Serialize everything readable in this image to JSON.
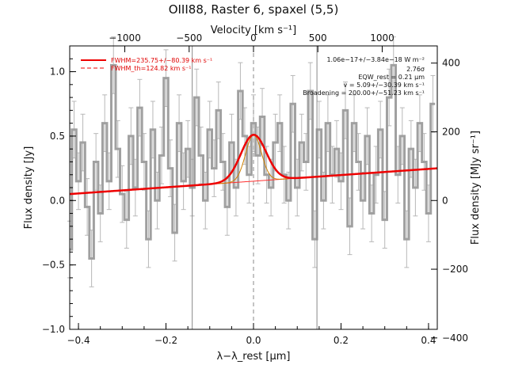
{
  "chart_data": {
    "type": "line",
    "title": "OIII88, Raster 6, spaxel (5,5)",
    "xlabel": "λ−λ_rest [μm]",
    "ylabel": "Flux density [Jy]",
    "top_xlabel": "Velocity [km s⁻¹]",
    "right_ylabel": "Flux density [MJy sr⁻¹]",
    "xlim": [
      -0.42,
      0.42
    ],
    "ylim": [
      -1.0,
      1.2
    ],
    "x_ticks": [
      -0.4,
      -0.2,
      0.0,
      0.2,
      0.4
    ],
    "x_tick_labels": [
      "−0.4",
      "−0.2",
      "0.0",
      "0.2",
      "0.4"
    ],
    "y_ticks": [
      -1.0,
      -0.5,
      0.0,
      0.5,
      1.0
    ],
    "y_tick_labels": [
      "−1.0",
      "−0.5",
      "0.0",
      "0.5",
      "1.0"
    ],
    "top_ticks": [
      -1000,
      -500,
      0,
      500,
      1000
    ],
    "top_tick_labels": [
      "−1000",
      "−500",
      "0",
      "500",
      "1000"
    ],
    "right_ticks": [
      -400,
      -200,
      0,
      200,
      400
    ],
    "right_tick_labels": [
      "−400",
      "−200",
      "0",
      "200",
      "400"
    ],
    "right_per_jy": 375,
    "km_s_per_um": 3400,
    "vertical_lines": [
      -0.14,
      0.145
    ],
    "center_line": 0.0,
    "colors": {
      "spectrum": "#a0a0a0",
      "errorbar": "#b8b8b8",
      "fit": "#ee0000",
      "component": "#d08000",
      "thin": "#ff3030"
    },
    "legend": [
      {
        "label": "FWHM=235.75+/−80.39 km s⁻¹",
        "style": "solid"
      },
      {
        "label": "FWHM_th=124.82 km s⁻¹",
        "style": "dashed"
      }
    ],
    "annotations": [
      "1.06e−17+/−3.84e−18 W m⁻²",
      "2.76σ",
      "EQW_rest = 0.21 μm",
      "v = 5.09+/−30.39 km s⁻¹",
      "Broadening = 200.00+/−51.23 km s⁻¹"
    ],
    "fit": {
      "continuum_start": 0.05,
      "continuum_end": 0.25,
      "center": 0.0,
      "amplitude": 0.36,
      "sigma_um": 0.029,
      "component_sigma_um": 0.018
    },
    "spectrum": {
      "x": [
        -0.42,
        -0.41,
        -0.4,
        -0.39,
        -0.38,
        -0.37,
        -0.36,
        -0.35,
        -0.34,
        -0.33,
        -0.32,
        -0.31,
        -0.3,
        -0.29,
        -0.28,
        -0.27,
        -0.26,
        -0.25,
        -0.24,
        -0.23,
        -0.22,
        -0.21,
        -0.2,
        -0.19,
        -0.18,
        -0.17,
        -0.16,
        -0.15,
        -0.14,
        -0.13,
        -0.12,
        -0.11,
        -0.1,
        -0.09,
        -0.08,
        -0.07,
        -0.06,
        -0.05,
        -0.04,
        -0.03,
        -0.02,
        -0.01,
        0.0,
        0.01,
        0.02,
        0.03,
        0.04,
        0.05,
        0.06,
        0.07,
        0.08,
        0.09,
        0.1,
        0.11,
        0.12,
        0.13,
        0.14,
        0.15,
        0.16,
        0.17,
        0.18,
        0.19,
        0.2,
        0.21,
        0.22,
        0.23,
        0.24,
        0.25,
        0.26,
        0.27,
        0.28,
        0.29,
        0.3,
        0.31,
        0.32,
        0.33,
        0.34,
        0.35,
        0.36,
        0.37,
        0.38,
        0.39,
        0.4,
        0.41
      ],
      "y": [
        -0.38,
        0.55,
        0.15,
        0.45,
        -0.05,
        -0.45,
        0.3,
        -0.1,
        0.6,
        0.15,
        1.05,
        0.4,
        0.05,
        -0.15,
        0.5,
        0.1,
        0.72,
        0.3,
        -0.3,
        0.55,
        0.0,
        0.35,
        0.95,
        0.25,
        -0.25,
        0.6,
        0.15,
        0.4,
        0.1,
        0.8,
        0.35,
        0.0,
        0.55,
        0.25,
        0.7,
        0.3,
        -0.05,
        0.45,
        0.1,
        0.85,
        0.5,
        0.2,
        0.6,
        0.35,
        0.65,
        0.2,
        0.1,
        0.45,
        0.6,
        0.2,
        0.0,
        0.75,
        0.1,
        0.45,
        0.3,
        0.85,
        -0.3,
        0.55,
        0.0,
        0.6,
        0.2,
        0.4,
        0.15,
        0.7,
        -0.2,
        0.6,
        0.3,
        0.0,
        0.5,
        -0.1,
        0.2,
        0.55,
        -0.15,
        0.8,
        1.05,
        0.2,
        0.5,
        -0.3,
        0.4,
        0.1,
        0.6,
        0.3,
        -0.1,
        0.75
      ],
      "err": 0.22
    }
  }
}
